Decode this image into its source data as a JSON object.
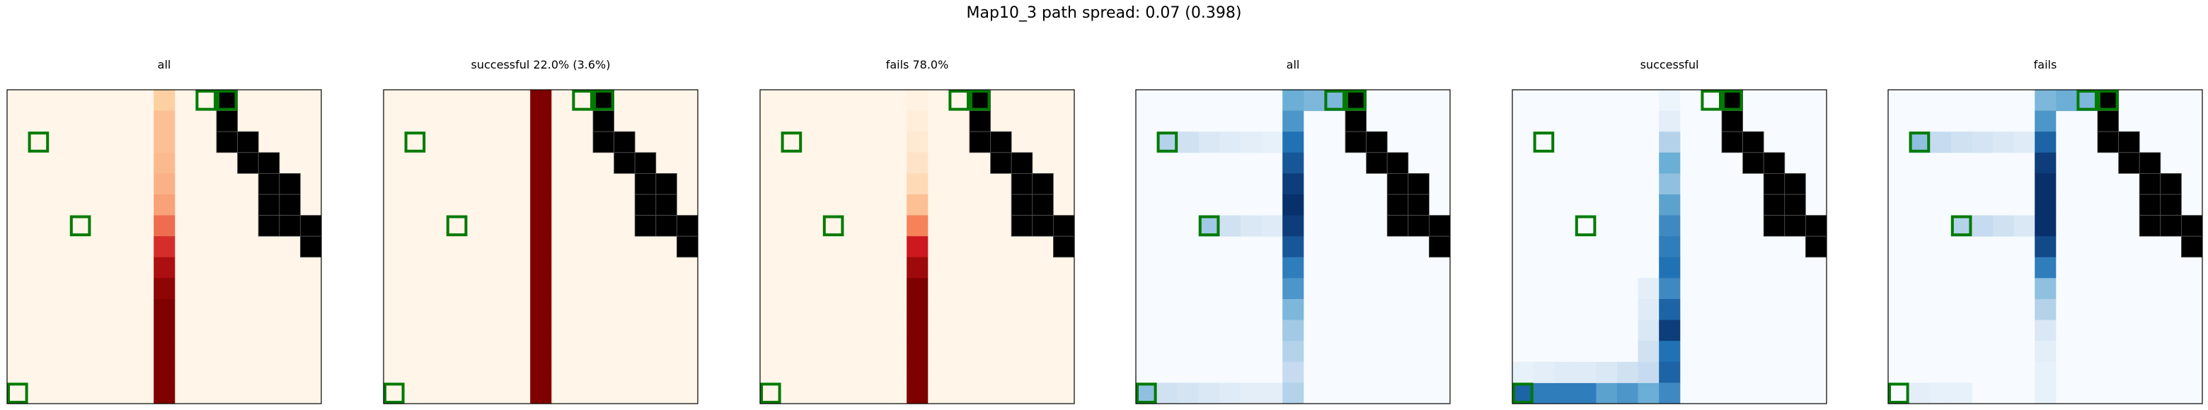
{
  "figure": {
    "title": "Map10_3 path spread: 0.07 (0.398)"
  },
  "chart_data": {
    "type": "heatmap",
    "grid_size": 15,
    "obstacles": [
      [
        0,
        10
      ],
      [
        1,
        10
      ],
      [
        2,
        10
      ],
      [
        2,
        11
      ],
      [
        3,
        11
      ],
      [
        3,
        12
      ],
      [
        4,
        12
      ],
      [
        4,
        13
      ],
      [
        5,
        12
      ],
      [
        5,
        13
      ],
      [
        6,
        12
      ],
      [
        6,
        13
      ],
      [
        6,
        14
      ],
      [
        7,
        14
      ]
    ],
    "markers": [
      [
        0,
        9
      ],
      [
        0,
        10
      ],
      [
        2,
        1
      ],
      [
        6,
        3
      ],
      [
        14,
        0
      ]
    ],
    "panels": [
      {
        "title": "all",
        "colormap": "Oranges-Red",
        "column_values": [
          {
            "col": 7,
            "values": [
              0.25,
              0.3,
              0.3,
              0.32,
              0.35,
              0.4,
              0.55,
              0.7,
              0.85,
              0.95,
              1,
              1,
              1,
              1,
              1
            ]
          }
        ],
        "cells": []
      },
      {
        "title": "successful 22.0% (3.6%)",
        "colormap": "Oranges-Red",
        "column_values": [
          {
            "col": 7,
            "values": [
              1,
              1,
              1,
              1,
              1,
              1,
              1,
              1,
              1,
              1,
              1,
              1,
              1,
              1,
              1
            ]
          }
        ],
        "cells": []
      },
      {
        "title": "fails 78.0%",
        "colormap": "Oranges-Red",
        "column_values": [
          {
            "col": 7,
            "values": [
              0.02,
              0.05,
              0.08,
              0.12,
              0.18,
              0.3,
              0.5,
              0.75,
              0.9,
              1,
              1,
              1,
              1,
              1,
              1
            ]
          }
        ],
        "cells": []
      },
      {
        "title": "all",
        "colormap": "Blues",
        "column_values": [
          {
            "col": 7,
            "values": [
              0.5,
              0.6,
              0.75,
              0.85,
              0.95,
              1,
              0.95,
              0.85,
              0.7,
              0.6,
              0.45,
              0.35,
              0.3,
              0.25,
              0.3
            ]
          }
        ],
        "cells": [
          {
            "r": 0,
            "c": 8,
            "v": 0.45
          },
          {
            "r": 0,
            "c": 9,
            "v": 0.45
          },
          {
            "r": 0,
            "c": 10,
            "v": 0.45
          },
          {
            "r": 2,
            "c": 1,
            "v": 0.3
          },
          {
            "r": 2,
            "c": 2,
            "v": 0.2
          },
          {
            "r": 2,
            "c": 3,
            "v": 0.15
          },
          {
            "r": 2,
            "c": 4,
            "v": 0.12
          },
          {
            "r": 2,
            "c": 5,
            "v": 0.1
          },
          {
            "r": 2,
            "c": 6,
            "v": 0.08
          },
          {
            "r": 6,
            "c": 3,
            "v": 0.35
          },
          {
            "r": 6,
            "c": 4,
            "v": 0.2
          },
          {
            "r": 6,
            "c": 5,
            "v": 0.15
          },
          {
            "r": 6,
            "c": 6,
            "v": 0.12
          },
          {
            "r": 14,
            "c": 0,
            "v": 0.4
          },
          {
            "r": 14,
            "c": 1,
            "v": 0.2
          },
          {
            "r": 14,
            "c": 2,
            "v": 0.18
          },
          {
            "r": 14,
            "c": 3,
            "v": 0.15
          },
          {
            "r": 14,
            "c": 4,
            "v": 0.12
          },
          {
            "r": 14,
            "c": 5,
            "v": 0.1
          },
          {
            "r": 14,
            "c": 6,
            "v": 0.1
          }
        ]
      },
      {
        "title": "successful",
        "colormap": "Blues",
        "column_values": [
          {
            "col": 7,
            "values": [
              0.05,
              0.1,
              0.3,
              0.5,
              0.4,
              0.55,
              0.65,
              0.7,
              0.75,
              0.65,
              0.8,
              0.95,
              0.75,
              0.8,
              0.65
            ]
          }
        ],
        "cells": [
          {
            "r": 14,
            "c": 0,
            "v": 0.8
          },
          {
            "r": 14,
            "c": 1,
            "v": 0.7
          },
          {
            "r": 14,
            "c": 2,
            "v": 0.7
          },
          {
            "r": 14,
            "c": 3,
            "v": 0.7
          },
          {
            "r": 14,
            "c": 4,
            "v": 0.55
          },
          {
            "r": 14,
            "c": 5,
            "v": 0.6
          },
          {
            "r": 14,
            "c": 6,
            "v": 0.5
          },
          {
            "r": 13,
            "c": 0,
            "v": 0.08
          },
          {
            "r": 13,
            "c": 1,
            "v": 0.1
          },
          {
            "r": 13,
            "c": 2,
            "v": 0.12
          },
          {
            "r": 13,
            "c": 3,
            "v": 0.12
          },
          {
            "r": 13,
            "c": 4,
            "v": 0.15
          },
          {
            "r": 13,
            "c": 5,
            "v": 0.2
          },
          {
            "r": 13,
            "c": 6,
            "v": 0.25
          },
          {
            "r": 9,
            "c": 6,
            "v": 0.1
          },
          {
            "r": 10,
            "c": 6,
            "v": 0.12
          },
          {
            "r": 11,
            "c": 6,
            "v": 0.15
          },
          {
            "r": 12,
            "c": 6,
            "v": 0.2
          }
        ]
      },
      {
        "title": "fails",
        "colormap": "Blues",
        "column_values": [
          {
            "col": 7,
            "values": [
              0.45,
              0.6,
              0.8,
              0.95,
              1,
              1,
              1,
              0.9,
              0.7,
              0.4,
              0.3,
              0.15,
              0.1,
              0.08,
              0.08
            ]
          }
        ],
        "cells": [
          {
            "r": 0,
            "c": 8,
            "v": 0.5
          },
          {
            "r": 0,
            "c": 9,
            "v": 0.45
          },
          {
            "r": 0,
            "c": 10,
            "v": 0.3
          },
          {
            "r": 2,
            "c": 1,
            "v": 0.4
          },
          {
            "r": 2,
            "c": 2,
            "v": 0.25
          },
          {
            "r": 2,
            "c": 3,
            "v": 0.2
          },
          {
            "r": 2,
            "c": 4,
            "v": 0.18
          },
          {
            "r": 2,
            "c": 5,
            "v": 0.15
          },
          {
            "r": 2,
            "c": 6,
            "v": 0.12
          },
          {
            "r": 6,
            "c": 3,
            "v": 0.3
          },
          {
            "r": 6,
            "c": 4,
            "v": 0.25
          },
          {
            "r": 6,
            "c": 5,
            "v": 0.2
          },
          {
            "r": 6,
            "c": 6,
            "v": 0.15
          },
          {
            "r": 14,
            "c": 1,
            "v": 0.1
          },
          {
            "r": 14,
            "c": 2,
            "v": 0.08
          },
          {
            "r": 14,
            "c": 3,
            "v": 0.08
          }
        ]
      }
    ]
  }
}
